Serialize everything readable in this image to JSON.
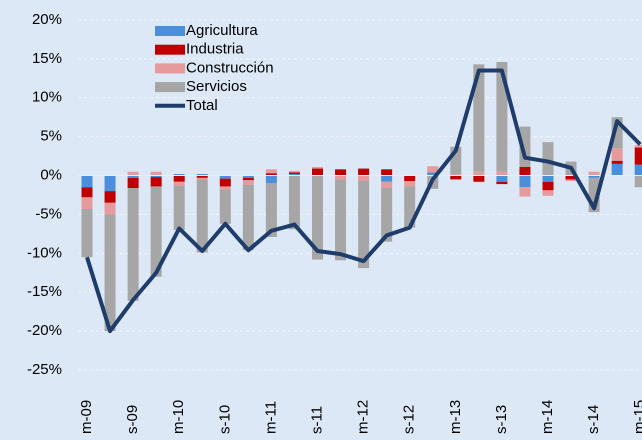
{
  "chart_data": {
    "type": "bar",
    "stacked": true,
    "categories": [
      "m-09",
      null,
      "s-09",
      null,
      "m-10",
      null,
      "s-10",
      null,
      "m-11",
      null,
      "s-11",
      null,
      "m-12",
      null,
      "s-12",
      null,
      "m-13",
      null,
      "s-13",
      null,
      "m-14",
      null,
      "s-14",
      null,
      "m-15"
    ],
    "series": [
      {
        "name": "Agricultura",
        "color": "#4a8fdc",
        "values": [
          -1.5,
          -2,
          -0.3,
          -0.2,
          0.2,
          0.2,
          -0.4,
          -0.3,
          -1,
          0.2,
          0,
          0,
          0,
          -0.8,
          0,
          0.4,
          0,
          0,
          -0.8,
          -1.5,
          -0.8,
          0,
          -0.3,
          1.5,
          1.4
        ]
      },
      {
        "name": "Industria",
        "color": "#c00000",
        "values": [
          -1.3,
          -1.5,
          -1.3,
          -1.2,
          -0.8,
          -0.3,
          -1,
          -0.3,
          0.3,
          0.2,
          0.9,
          0.8,
          0.9,
          0.8,
          -0.7,
          0,
          -0.5,
          -0.8,
          -0.3,
          1.1,
          -1.1,
          -0.5,
          0,
          0.4,
          2.2
        ]
      },
      {
        "name": "Construcción",
        "color": "#e69a9b",
        "values": [
          -1.5,
          -1.5,
          0.5,
          0.5,
          -0.5,
          -0.2,
          -0.4,
          -0.6,
          0.5,
          0.2,
          0.2,
          -0.5,
          -0.7,
          -0.8,
          -0.7,
          0.8,
          0.2,
          0.5,
          0.5,
          -1.2,
          -0.7,
          -0.2,
          0.5,
          1.6,
          0.3
        ]
      },
      {
        "name": "Servicios",
        "color": "#a6a6a6",
        "values": [
          -6.2,
          -15,
          -14.5,
          -11.6,
          -5.7,
          -9.4,
          -4.4,
          -8.4,
          -6.9,
          -6.9,
          -10.8,
          -10.4,
          -11.2,
          -6.9,
          -5.3,
          -1.7,
          3.5,
          13.8,
          14.1,
          5.2,
          4.3,
          1.8,
          -4.4,
          4,
          -1.5
        ]
      },
      {
        "name": "Total",
        "color": "#1f3d6b",
        "type": "line",
        "values": [
          -10.5,
          -20,
          -16,
          -12.5,
          -6.8,
          -9.7,
          -6.2,
          -9.6,
          -7.1,
          -6.3,
          -9.7,
          -10.1,
          -11,
          -7.7,
          -6.7,
          -0.5,
          3.2,
          13.5,
          13.5,
          2.3,
          1.8,
          1.0,
          -4.2,
          7.0,
          4.0
        ]
      }
    ],
    "ylim": [
      -25,
      20
    ],
    "yticks": [
      {
        "value": -25,
        "label": "-25%"
      },
      {
        "value": -20,
        "label": "-20%"
      },
      {
        "value": -15,
        "label": "-15%"
      },
      {
        "value": -10,
        "label": "-10%"
      },
      {
        "value": -5,
        "label": "-5%"
      },
      {
        "value": 0,
        "label": "0%"
      },
      {
        "value": 5,
        "label": "5%"
      },
      {
        "value": 10,
        "label": "10%"
      },
      {
        "value": 15,
        "label": "15%"
      },
      {
        "value": 20,
        "label": "20%"
      }
    ],
    "grid": true,
    "legend": "upper left"
  }
}
